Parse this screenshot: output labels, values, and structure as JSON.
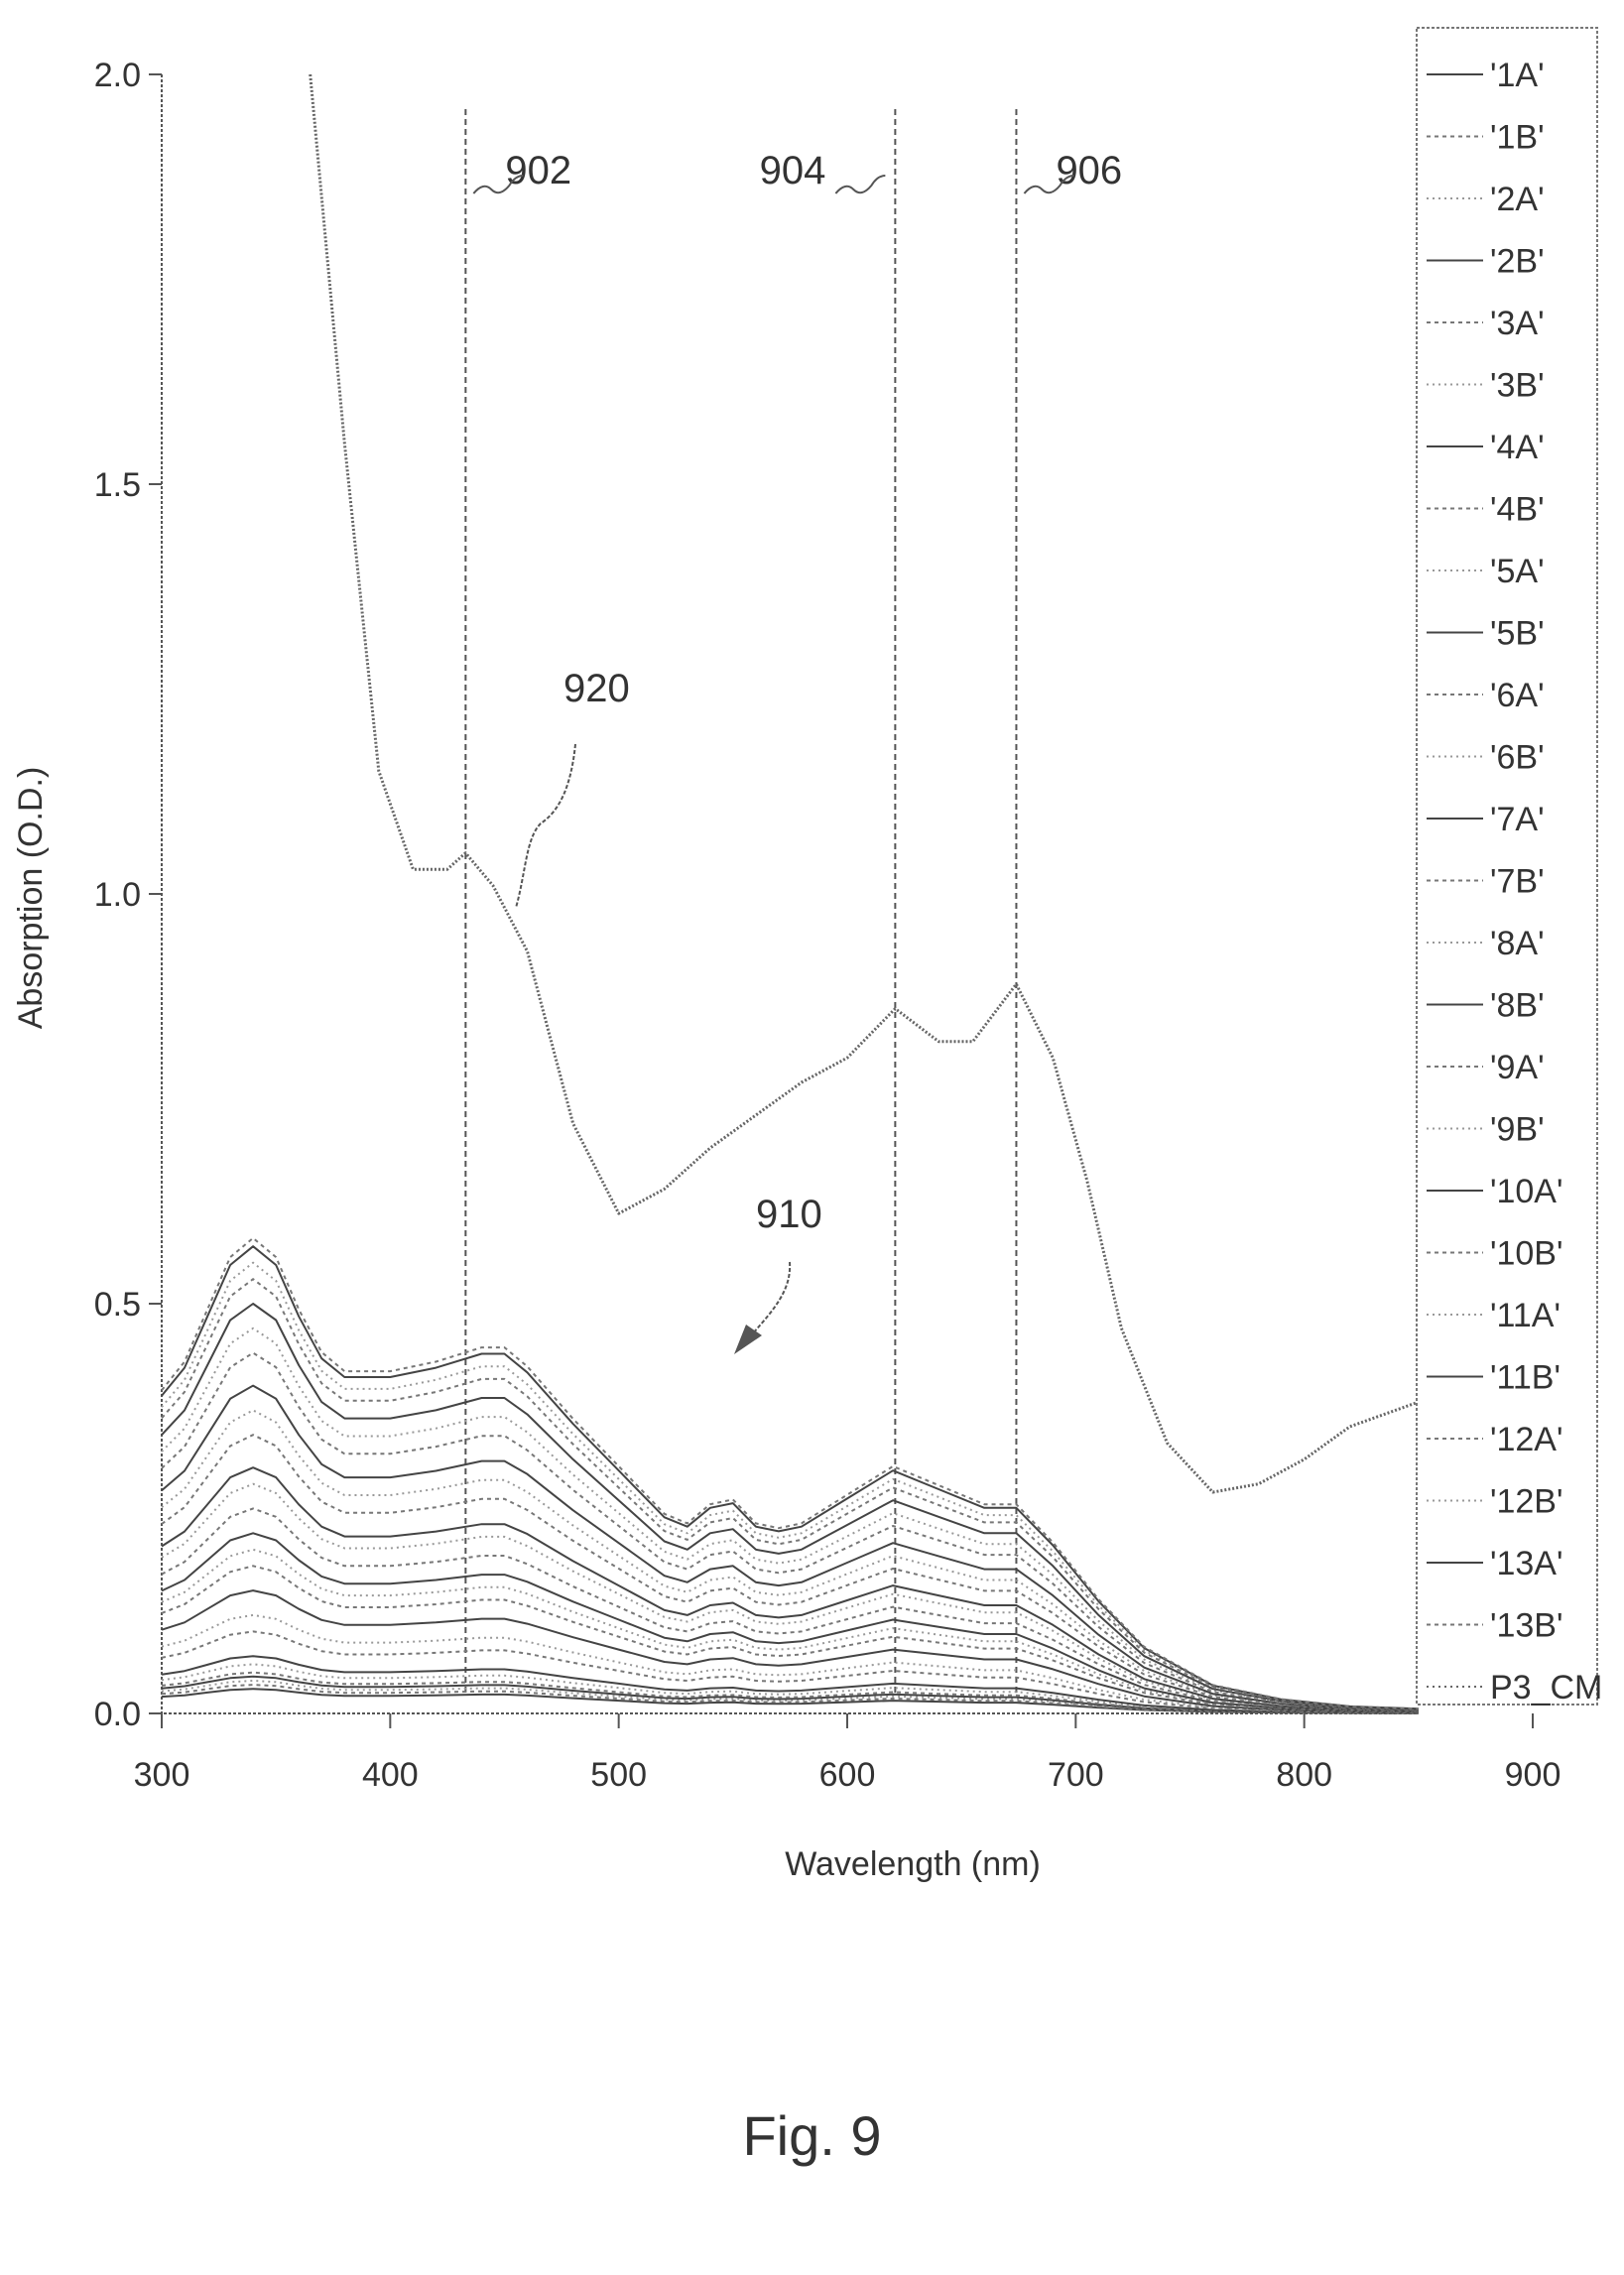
{
  "chart_data": {
    "type": "line",
    "xlabel": "Wavelength (nm)",
    "ylabel": "Absorption (O.D.)",
    "xlim": [
      300,
      850
    ],
    "ylim": [
      0,
      2.0
    ],
    "x_tick_labels": [
      "300",
      "400",
      "500",
      "600",
      "700",
      "800",
      "900"
    ],
    "x_tick_values": [
      300,
      400,
      500,
      600,
      700,
      800,
      900
    ],
    "y_tick_labels": [
      "0.0",
      "0.5",
      "1.0",
      "1.5",
      "2.0"
    ],
    "y_tick_values": [
      0,
      0.5,
      1.0,
      1.5,
      2.0
    ],
    "reference_lines": [
      {
        "label": "902",
        "x": 433
      },
      {
        "label": "904",
        "x": 621
      },
      {
        "label": "906",
        "x": 674
      }
    ],
    "annotations": [
      "920",
      "910"
    ],
    "legend": {
      "placement": "right"
    },
    "series": [
      {
        "name": "'1A'",
        "peak": 0.03
      },
      {
        "name": "'1B'",
        "peak": 0.035
      },
      {
        "name": "'2A'",
        "peak": 0.04
      },
      {
        "name": "'2B'",
        "peak": 0.045
      },
      {
        "name": "'3A'",
        "peak": 0.05
      },
      {
        "name": "'3B'",
        "peak": 0.06
      },
      {
        "name": "'4A'",
        "peak": 0.07
      },
      {
        "name": "'4B'",
        "peak": 0.1
      },
      {
        "name": "'5A'",
        "peak": 0.12
      },
      {
        "name": "'5B'",
        "peak": 0.15
      },
      {
        "name": "'6A'",
        "peak": 0.18
      },
      {
        "name": "'6B'",
        "peak": 0.2
      },
      {
        "name": "'7A'",
        "peak": 0.22
      },
      {
        "name": "'7B'",
        "peak": 0.25
      },
      {
        "name": "'8A'",
        "peak": 0.28
      },
      {
        "name": "'8B'",
        "peak": 0.3
      },
      {
        "name": "'9A'",
        "peak": 0.34
      },
      {
        "name": "'9B'",
        "peak": 0.37
      },
      {
        "name": "'10A'",
        "peak": 0.4
      },
      {
        "name": "'10B'",
        "peak": 0.44
      },
      {
        "name": "'11A'",
        "peak": 0.47
      },
      {
        "name": "'11B'",
        "peak": 0.5
      },
      {
        "name": "'12A'",
        "peak": 0.53
      },
      {
        "name": "'12B'",
        "peak": 0.55
      },
      {
        "name": "'13A'",
        "peak": 0.57
      },
      {
        "name": "'13B'",
        "peak": 0.58
      },
      {
        "name": "P3_CM",
        "x": [
          365,
          380,
          395,
          410,
          425,
          433,
          445,
          460,
          480,
          500,
          520,
          540,
          560,
          580,
          600,
          621,
          640,
          655,
          674,
          690,
          705,
          720,
          740,
          760,
          780,
          800,
          820,
          850
        ],
        "y": [
          2.0,
          1.55,
          1.15,
          1.03,
          1.03,
          1.05,
          1.01,
          0.93,
          0.72,
          0.61,
          0.64,
          0.69,
          0.73,
          0.77,
          0.8,
          0.86,
          0.82,
          0.82,
          0.89,
          0.8,
          0.65,
          0.47,
          0.33,
          0.27,
          0.28,
          0.31,
          0.35,
          0.38
        ]
      }
    ],
    "series_template": {
      "x": [
        300,
        310,
        320,
        330,
        340,
        350,
        360,
        370,
        380,
        400,
        420,
        440,
        450,
        460,
        480,
        500,
        520,
        530,
        540,
        550,
        560,
        570,
        580,
        600,
        620,
        640,
        660,
        674,
        690,
        710,
        730,
        760,
        790,
        820,
        850
      ],
      "y_norm": [
        0.68,
        0.74,
        0.85,
        0.96,
        1.0,
        0.96,
        0.85,
        0.76,
        0.72,
        0.72,
        0.74,
        0.77,
        0.77,
        0.73,
        0.62,
        0.52,
        0.42,
        0.4,
        0.44,
        0.45,
        0.4,
        0.39,
        0.4,
        0.46,
        0.52,
        0.48,
        0.44,
        0.44,
        0.36,
        0.24,
        0.14,
        0.06,
        0.03,
        0.015,
        0.01
      ]
    }
  },
  "caption": "Fig. 9"
}
